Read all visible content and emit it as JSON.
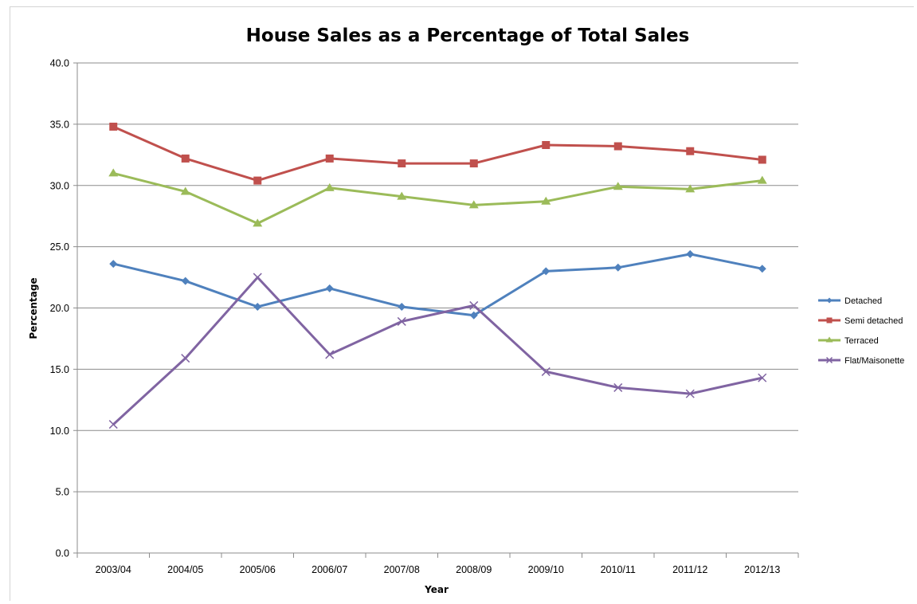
{
  "chart_data": {
    "type": "line",
    "title": "House Sales as a Percentage of Total Sales",
    "xlabel": "Year",
    "ylabel": "Percentage",
    "categories": [
      "2003/04",
      "2004/05",
      "2005/06",
      "2006/07",
      "2007/08",
      "2008/09",
      "2009/10",
      "2010/11",
      "2011/12",
      "2012/13"
    ],
    "ylim": [
      0,
      40
    ],
    "yticks": [
      "0.0",
      "5.0",
      "10.0",
      "15.0",
      "20.0",
      "25.0",
      "30.0",
      "35.0",
      "40.0"
    ],
    "grid": "horizontal",
    "legend_position": "right",
    "series": [
      {
        "name": "Detached",
        "color": "#4f81bd",
        "marker": "diamond",
        "values": [
          23.6,
          22.2,
          20.1,
          21.6,
          20.1,
          19.4,
          23.0,
          23.3,
          24.4,
          23.2
        ]
      },
      {
        "name": "Semi detached",
        "color": "#c0504d",
        "marker": "square",
        "values": [
          34.8,
          32.2,
          30.4,
          32.2,
          31.8,
          31.8,
          33.3,
          33.2,
          32.8,
          32.1
        ]
      },
      {
        "name": "Terraced",
        "color": "#9bbb59",
        "marker": "triangle",
        "values": [
          31.0,
          29.5,
          26.9,
          29.8,
          29.1,
          28.4,
          28.7,
          29.9,
          29.7,
          30.4
        ]
      },
      {
        "name": "Flat/Maisonette",
        "color": "#8064a2",
        "marker": "x",
        "values": [
          10.5,
          15.9,
          22.5,
          16.2,
          18.9,
          20.2,
          14.8,
          13.5,
          13.0,
          14.3
        ]
      }
    ]
  }
}
